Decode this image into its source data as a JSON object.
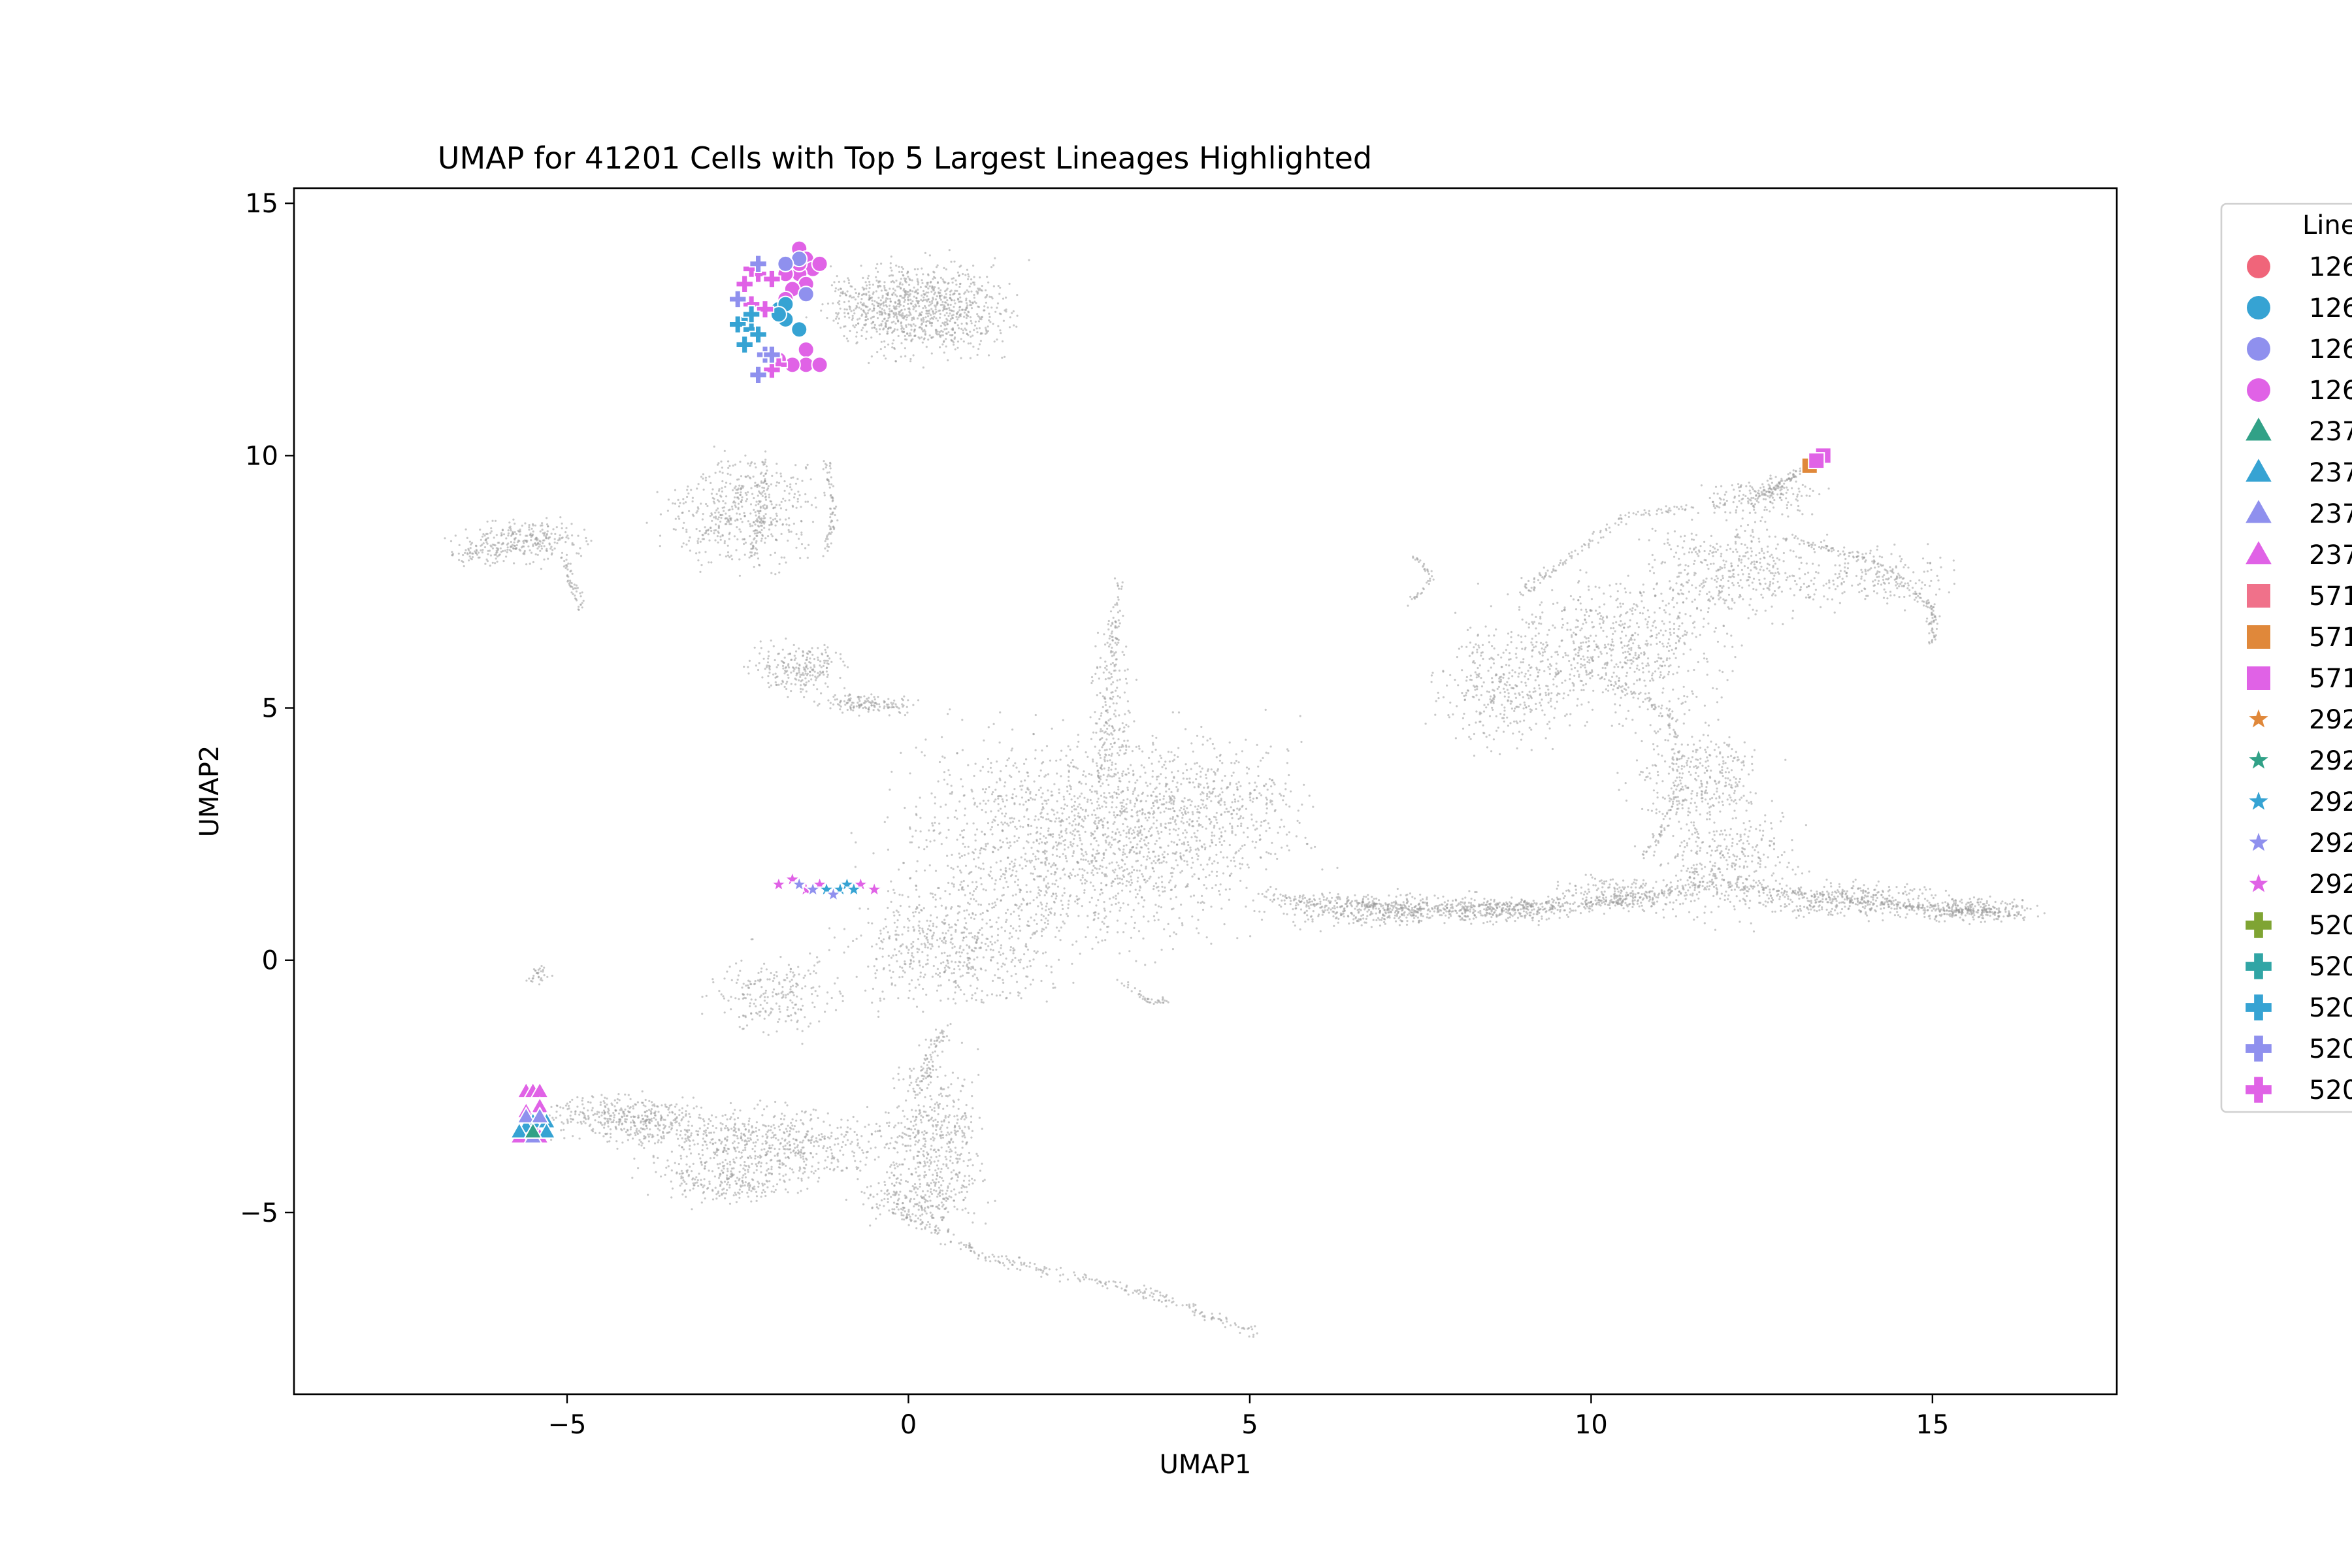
{
  "chart_data": {
    "type": "scatter",
    "title": "UMAP for 41201 Cells with Top 5 Largest Lineages Highlighted",
    "xlabel": "UMAP1",
    "ylabel": "UMAP2",
    "xlim": [
      -9.0,
      17.7
    ],
    "ylim": [
      -8.6,
      15.3
    ],
    "xticks": [
      -5,
      0,
      5,
      10,
      15
    ],
    "yticks": [
      -5,
      0,
      5,
      10,
      15
    ],
    "xtick_labels": [
      "−5",
      "0",
      "5",
      "10",
      "15"
    ],
    "ytick_labels": [
      "−5",
      "0",
      "5",
      "10",
      "15"
    ],
    "grid": false,
    "legend_position": "outside-right (clipped)",
    "background_color": "#9a9a9a",
    "legend": {
      "title": "Line",
      "entries": [
        {
          "label": "126",
          "marker": "circle",
          "color": "#f0657a"
        },
        {
          "label": "126",
          "marker": "circle",
          "color": "#36a3d3"
        },
        {
          "label": "126",
          "marker": "circle",
          "color": "#8f90ee"
        },
        {
          "label": "126",
          "marker": "circle",
          "color": "#e062e6"
        },
        {
          "label": "237",
          "marker": "triangle",
          "color": "#31a187"
        },
        {
          "label": "237",
          "marker": "triangle",
          "color": "#36a3d3"
        },
        {
          "label": "237",
          "marker": "triangle",
          "color": "#8f90ee"
        },
        {
          "label": "237",
          "marker": "triangle",
          "color": "#e062e6"
        },
        {
          "label": "571",
          "marker": "square",
          "color": "#f0718a"
        },
        {
          "label": "571",
          "marker": "square",
          "color": "#e0883a"
        },
        {
          "label": "571",
          "marker": "square",
          "color": "#e062e6"
        },
        {
          "label": "292",
          "marker": "star",
          "color": "#e0883a"
        },
        {
          "label": "292",
          "marker": "star",
          "color": "#31a187"
        },
        {
          "label": "292",
          "marker": "star",
          "color": "#36a3d3"
        },
        {
          "label": "292",
          "marker": "star",
          "color": "#8f90ee"
        },
        {
          "label": "292",
          "marker": "star",
          "color": "#e062e6"
        },
        {
          "label": "520",
          "marker": "plus",
          "color": "#7fa433"
        },
        {
          "label": "520",
          "marker": "plus",
          "color": "#31a5a5"
        },
        {
          "label": "520",
          "marker": "plus",
          "color": "#36a3d3"
        },
        {
          "label": "520",
          "marker": "plus",
          "color": "#8f90ee"
        },
        {
          "label": "520",
          "marker": "plus",
          "color": "#e062e6"
        }
      ]
    },
    "background_regions": [
      {
        "cx": 0.4,
        "cy": 12.9,
        "rx": 0.9,
        "ry": 0.8,
        "n": 700
      },
      {
        "cx": -0.5,
        "cy": 13.0,
        "rx": 0.7,
        "ry": 0.6,
        "n": 300
      },
      {
        "cx": -2.4,
        "cy": 8.9,
        "rx": 1.0,
        "ry": 0.9,
        "n": 500
      },
      {
        "cx": -5.6,
        "cy": 8.3,
        "rx": 0.7,
        "ry": 0.35,
        "n": 260
      },
      {
        "cx": -6.3,
        "cy": 8.1,
        "rx": 0.35,
        "ry": 0.25,
        "n": 60
      },
      {
        "cx": -1.6,
        "cy": 5.8,
        "rx": 0.6,
        "ry": 0.45,
        "n": 220
      },
      {
        "cx": -0.6,
        "cy": 5.1,
        "rx": 0.6,
        "ry": 0.2,
        "n": 140
      },
      {
        "cx": 2.5,
        "cy": 2.3,
        "rx": 2.2,
        "ry": 1.8,
        "n": 1600
      },
      {
        "cx": 0.6,
        "cy": 0.2,
        "rx": 1.3,
        "ry": 1.0,
        "n": 500
      },
      {
        "cx": 3.0,
        "cy": 4.8,
        "rx": 0.25,
        "ry": 1.6,
        "n": 160
      },
      {
        "cx": 4.4,
        "cy": 3.1,
        "rx": 1.3,
        "ry": 1.3,
        "n": 450
      },
      {
        "cx": 6.8,
        "cy": 1.0,
        "rx": 1.2,
        "ry": 0.28,
        "n": 350
      },
      {
        "cx": 8.8,
        "cy": 1.0,
        "rx": 1.0,
        "ry": 0.22,
        "n": 280
      },
      {
        "cx": 10.5,
        "cy": 1.3,
        "rx": 0.8,
        "ry": 0.3,
        "n": 200
      },
      {
        "cx": 12.0,
        "cy": 1.9,
        "rx": 0.9,
        "ry": 0.9,
        "n": 350
      },
      {
        "cx": 13.8,
        "cy": 1.2,
        "rx": 1.2,
        "ry": 0.3,
        "n": 320
      },
      {
        "cx": 15.6,
        "cy": 1.0,
        "rx": 0.8,
        "ry": 0.2,
        "n": 220
      },
      {
        "cx": 10.3,
        "cy": 6.2,
        "rx": 1.4,
        "ry": 1.2,
        "n": 700
      },
      {
        "cx": 8.7,
        "cy": 5.4,
        "rx": 0.8,
        "ry": 1.0,
        "n": 300
      },
      {
        "cx": 11.6,
        "cy": 3.6,
        "rx": 0.8,
        "ry": 0.9,
        "n": 300
      },
      {
        "cx": 12.2,
        "cy": 7.7,
        "rx": 1.2,
        "ry": 0.8,
        "n": 400
      },
      {
        "cx": 14.2,
        "cy": 7.6,
        "rx": 0.9,
        "ry": 0.5,
        "n": 180
      },
      {
        "cx": 12.5,
        "cy": 9.2,
        "rx": 0.7,
        "ry": 0.35,
        "n": 140
      },
      {
        "cx": -3.7,
        "cy": -3.2,
        "rx": 0.7,
        "ry": 0.4,
        "n": 180
      },
      {
        "cx": -2.0,
        "cy": -3.6,
        "rx": 1.6,
        "ry": 0.6,
        "n": 600
      },
      {
        "cx": -4.4,
        "cy": -3.1,
        "rx": 0.8,
        "ry": 0.35,
        "n": 220
      },
      {
        "cx": 0.4,
        "cy": -3.5,
        "rx": 0.6,
        "ry": 1.3,
        "n": 420
      },
      {
        "cx": 0.1,
        "cy": -4.7,
        "rx": 0.7,
        "ry": 0.5,
        "n": 200
      },
      {
        "cx": -2.6,
        "cy": -4.4,
        "rx": 0.9,
        "ry": 0.35,
        "n": 220
      },
      {
        "cx": -5.4,
        "cy": -0.3,
        "rx": 0.15,
        "ry": 0.2,
        "n": 30
      },
      {
        "cx": -1.9,
        "cy": -0.7,
        "rx": 0.8,
        "ry": 0.7,
        "n": 220
      }
    ],
    "background_paths": [
      {
        "points": [
          [
            -0.4,
            -4.8
          ],
          [
            1.2,
            -5.9
          ],
          [
            2.6,
            -6.3
          ],
          [
            4.0,
            -6.8
          ],
          [
            5.1,
            -7.4
          ]
        ],
        "n": 260,
        "spread": 0.12
      },
      {
        "points": [
          [
            0.5,
            -1.4
          ],
          [
            0.3,
            -2.0
          ],
          [
            0.2,
            -2.6
          ]
        ],
        "n": 80,
        "spread": 0.15
      },
      {
        "points": [
          [
            2.8,
            3.5
          ],
          [
            3.0,
            6.2
          ],
          [
            3.1,
            7.5
          ]
        ],
        "n": 90,
        "spread": 0.1
      },
      {
        "points": [
          [
            5.2,
            1.3
          ],
          [
            7.5,
            1.0
          ],
          [
            10.0,
            1.1
          ],
          [
            11.8,
            1.5
          ]
        ],
        "n": 400,
        "spread": 0.12
      },
      {
        "points": [
          [
            12.0,
            1.5
          ],
          [
            14.5,
            1.1
          ],
          [
            16.3,
            0.9
          ]
        ],
        "n": 250,
        "spread": 0.1
      },
      {
        "points": [
          [
            9.0,
            7.3
          ],
          [
            10.5,
            8.8
          ],
          [
            12.5,
            9.2
          ],
          [
            13.1,
            9.7
          ]
        ],
        "n": 220,
        "spread": 0.1
      },
      {
        "points": [
          [
            12.8,
            8.4
          ],
          [
            14.2,
            7.9
          ],
          [
            15.0,
            7.0
          ],
          [
            15.0,
            6.3
          ]
        ],
        "n": 150,
        "spread": 0.08
      },
      {
        "points": [
          [
            10.8,
            2.0
          ],
          [
            11.3,
            3.2
          ],
          [
            11.2,
            4.8
          ],
          [
            10.4,
            5.5
          ]
        ],
        "n": 140,
        "spread": 0.1
      },
      {
        "points": [
          [
            -2.3,
            8.0
          ],
          [
            -2.1,
            9.0
          ],
          [
            -2.1,
            9.9
          ]
        ],
        "n": 60,
        "spread": 0.06
      },
      {
        "points": [
          [
            -1.2,
            8.0
          ],
          [
            -1.1,
            9.0
          ],
          [
            -1.2,
            9.9
          ]
        ],
        "n": 60,
        "spread": 0.06
      },
      {
        "points": [
          [
            -5.0,
            8.0
          ],
          [
            -4.9,
            7.4
          ],
          [
            -4.8,
            7.0
          ]
        ],
        "n": 50,
        "spread": 0.08
      },
      {
        "points": [
          [
            3.1,
            -0.4
          ],
          [
            3.5,
            -0.8
          ],
          [
            3.8,
            -0.8
          ]
        ],
        "n": 40,
        "spread": 0.06
      },
      {
        "points": [
          [
            7.3,
            7.0
          ],
          [
            7.7,
            7.6
          ],
          [
            7.4,
            8.0
          ]
        ],
        "n": 40,
        "spread": 0.05
      }
    ],
    "highlighted_points": [
      {
        "series": 0,
        "marker": "circle",
        "color": "#e062e6",
        "points": [
          [
            -1.6,
            14.1
          ],
          [
            -1.5,
            13.9
          ],
          [
            -1.4,
            13.7
          ],
          [
            -1.6,
            13.6
          ],
          [
            -1.5,
            13.4
          ],
          [
            -1.7,
            13.3
          ],
          [
            -1.8,
            13.1
          ],
          [
            -1.6,
            13.8
          ],
          [
            -1.3,
            13.8
          ],
          [
            -1.8,
            13.6
          ],
          [
            -1.5,
            12.1
          ],
          [
            -1.5,
            11.8
          ],
          [
            -1.3,
            11.8
          ],
          [
            -1.7,
            11.8
          ],
          [
            -1.9,
            11.9
          ]
        ]
      },
      {
        "series": 1,
        "marker": "circle",
        "color": "#36a3d3",
        "points": [
          [
            -1.8,
            12.7
          ],
          [
            -1.9,
            12.9
          ],
          [
            -1.8,
            13.0
          ],
          [
            -1.6,
            12.5
          ],
          [
            -1.9,
            12.8
          ]
        ]
      },
      {
        "series": 2,
        "marker": "circle",
        "color": "#8f90ee",
        "points": [
          [
            -1.6,
            13.9
          ],
          [
            -1.8,
            13.8
          ],
          [
            -1.5,
            13.2
          ]
        ]
      },
      {
        "series": 3,
        "marker": "plus",
        "color": "#e062e6",
        "points": [
          [
            -2.4,
            13.4
          ],
          [
            -2.2,
            13.6
          ],
          [
            -2.0,
            13.5
          ],
          [
            -2.3,
            13.0
          ],
          [
            -2.1,
            12.9
          ],
          [
            -1.9,
            11.8
          ],
          [
            -2.0,
            11.7
          ],
          [
            -2.3,
            13.7
          ]
        ]
      },
      {
        "series": 4,
        "marker": "plus",
        "color": "#36a3d3",
        "points": [
          [
            -2.4,
            12.7
          ],
          [
            -2.5,
            12.6
          ],
          [
            -2.3,
            12.5
          ],
          [
            -2.4,
            12.2
          ],
          [
            -2.2,
            12.4
          ],
          [
            -2.3,
            12.8
          ]
        ]
      },
      {
        "series": 5,
        "marker": "plus",
        "color": "#8f90ee",
        "points": [
          [
            -2.1,
            12.0
          ],
          [
            -2.2,
            11.6
          ],
          [
            -2.0,
            12.0
          ],
          [
            -2.5,
            13.1
          ],
          [
            -2.2,
            13.8
          ]
        ]
      },
      {
        "series": 6,
        "marker": "triangle",
        "color": "#e062e6",
        "points": [
          [
            -5.6,
            -2.6
          ],
          [
            -5.5,
            -2.6
          ],
          [
            -5.4,
            -2.6
          ],
          [
            -5.6,
            -3.0
          ],
          [
            -5.4,
            -2.9
          ],
          [
            -5.5,
            -3.3
          ],
          [
            -5.7,
            -3.5
          ],
          [
            -5.4,
            -3.5
          ]
        ]
      },
      {
        "series": 7,
        "marker": "triangle",
        "color": "#36a3d3",
        "points": [
          [
            -5.5,
            -3.2
          ],
          [
            -5.3,
            -3.2
          ],
          [
            -5.6,
            -3.3
          ],
          [
            -5.3,
            -3.4
          ],
          [
            -5.7,
            -3.4
          ]
        ]
      },
      {
        "series": 8,
        "marker": "triangle",
        "color": "#8f90ee",
        "points": [
          [
            -5.6,
            -3.1
          ],
          [
            -5.4,
            -3.1
          ],
          [
            -5.5,
            -3.5
          ]
        ]
      },
      {
        "series": 9,
        "marker": "triangle",
        "color": "#31a187",
        "points": [
          [
            -5.5,
            -3.4
          ]
        ]
      },
      {
        "series": 10,
        "marker": "square",
        "color": "#e0883a",
        "points": [
          [
            13.2,
            9.8
          ]
        ]
      },
      {
        "series": 11,
        "marker": "square",
        "color": "#e062e6",
        "points": [
          [
            13.4,
            10.0
          ],
          [
            13.3,
            9.9
          ]
        ]
      },
      {
        "series": 12,
        "marker": "star",
        "color": "#e062e6",
        "points": [
          [
            -1.9,
            1.5
          ],
          [
            -1.7,
            1.6
          ],
          [
            -1.5,
            1.4
          ],
          [
            -1.3,
            1.5
          ],
          [
            -0.7,
            1.5
          ],
          [
            -0.5,
            1.4
          ]
        ]
      },
      {
        "series": 13,
        "marker": "star",
        "color": "#36a3d3",
        "points": [
          [
            -1.2,
            1.4
          ],
          [
            -1.0,
            1.4
          ],
          [
            -0.9,
            1.5
          ],
          [
            -0.8,
            1.4
          ]
        ]
      },
      {
        "series": 14,
        "marker": "star",
        "color": "#8f90ee",
        "points": [
          [
            -1.6,
            1.5
          ],
          [
            -1.4,
            1.4
          ],
          [
            -1.1,
            1.3
          ]
        ]
      }
    ]
  }
}
